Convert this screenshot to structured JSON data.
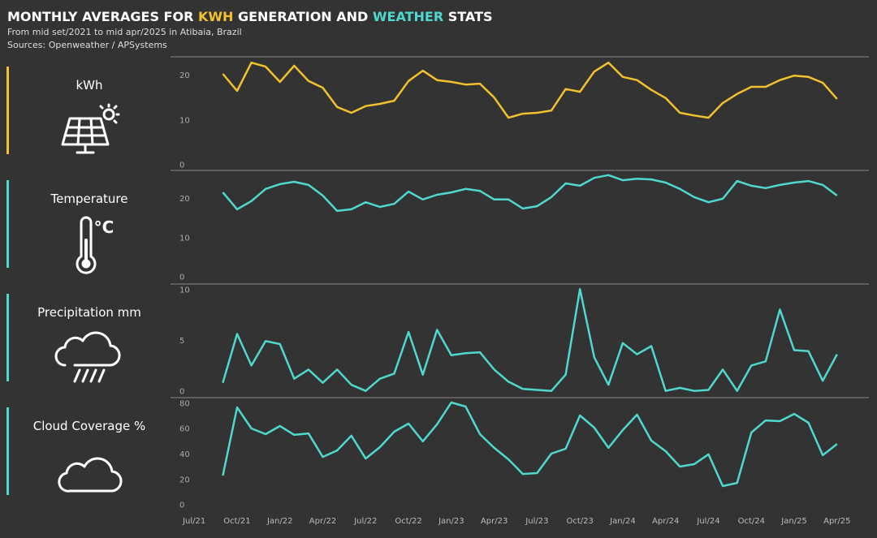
{
  "header": {
    "title": [
      {
        "text": "MONTHLY AVERAGES FOR ",
        "color": "#ffffff"
      },
      {
        "text": "KWH",
        "color": "#f2c12e"
      },
      {
        "text": " GENERATION AND ",
        "color": "#ffffff"
      },
      {
        "text": "WEATHER",
        "color": "#4fd8cf"
      },
      {
        "text": " STATS",
        "color": "#ffffff"
      }
    ],
    "subtitle": "From mid set/2021 to mid apr/2025 in Atibaia, Brazil",
    "source": "Sources: Openweather / APSystems"
  },
  "chart_data": [
    {
      "type": "line",
      "title": "kWh",
      "color": "#f2c12e",
      "x": [
        "2021-09",
        "2021-10",
        "2021-11",
        "2021-12",
        "2022-01",
        "2022-02",
        "2022-03",
        "2022-04",
        "2022-05",
        "2022-06",
        "2022-07",
        "2022-08",
        "2022-09",
        "2022-10",
        "2022-11",
        "2022-12",
        "2023-01",
        "2023-02",
        "2023-03",
        "2023-04",
        "2023-05",
        "2023-06",
        "2023-07",
        "2023-08",
        "2023-09",
        "2023-10",
        "2023-11",
        "2023-12",
        "2024-01",
        "2024-02",
        "2024-03",
        "2024-04",
        "2024-05",
        "2024-06",
        "2024-07",
        "2024-08",
        "2024-09",
        "2024-10",
        "2024-11",
        "2024-12",
        "2025-01",
        "2025-02",
        "2025-03",
        "2025-04"
      ],
      "values": [
        20.2,
        16.4,
        22.7,
        21.8,
        18.4,
        22.0,
        18.6,
        17.1,
        12.8,
        11.5,
        13.0,
        13.5,
        14.2,
        18.6,
        20.9,
        18.8,
        18.4,
        17.8,
        18.0,
        14.9,
        10.4,
        11.3,
        11.5,
        12.0,
        16.8,
        16.2,
        20.7,
        22.7,
        19.5,
        18.8,
        16.6,
        14.8,
        11.5,
        10.9,
        10.4,
        13.7,
        15.7,
        17.3,
        17.3,
        18.8,
        19.8,
        19.5,
        18.2,
        14.6
      ],
      "xlim": [
        "2021-05",
        "2025-06"
      ],
      "ylim": [
        -1,
        24
      ],
      "yticks": [
        0,
        10,
        20
      ]
    },
    {
      "type": "line",
      "title": "Temperature",
      "unit": "°C",
      "color": "#4fd8cf",
      "x": [
        "2021-09",
        "2021-10",
        "2021-11",
        "2021-12",
        "2022-01",
        "2022-02",
        "2022-03",
        "2022-04",
        "2022-05",
        "2022-06",
        "2022-07",
        "2022-08",
        "2022-09",
        "2022-10",
        "2022-11",
        "2022-12",
        "2023-01",
        "2023-02",
        "2023-03",
        "2023-04",
        "2023-05",
        "2023-06",
        "2023-07",
        "2023-08",
        "2023-09",
        "2023-10",
        "2023-11",
        "2023-12",
        "2024-01",
        "2024-02",
        "2024-03",
        "2024-04",
        "2024-05",
        "2024-06",
        "2024-07",
        "2024-08",
        "2024-09",
        "2024-10",
        "2024-11",
        "2024-12",
        "2025-01",
        "2025-02",
        "2025-03",
        "2025-04"
      ],
      "values": [
        21.4,
        17.1,
        19.2,
        22.3,
        23.5,
        24.1,
        23.3,
        20.6,
        16.7,
        17.1,
        18.9,
        17.7,
        18.5,
        21.6,
        19.6,
        20.8,
        21.4,
        22.3,
        21.8,
        19.6,
        19.6,
        17.3,
        17.9,
        20.2,
        23.7,
        23.1,
        25.1,
        25.8,
        24.5,
        24.9,
        24.7,
        23.9,
        22.3,
        20.2,
        18.9,
        19.8,
        24.3,
        23.1,
        22.5,
        23.3,
        23.9,
        24.3,
        23.3,
        20.6
      ],
      "xlim": [
        "2021-05",
        "2025-06"
      ],
      "ylim": [
        -1.5,
        27
      ],
      "yticks": [
        0,
        10,
        20
      ]
    },
    {
      "type": "line",
      "title": "Precipitation mm",
      "color": "#4fd8cf",
      "x": [
        "2021-09",
        "2021-10",
        "2021-11",
        "2021-12",
        "2022-01",
        "2022-02",
        "2022-03",
        "2022-04",
        "2022-05",
        "2022-06",
        "2022-07",
        "2022-08",
        "2022-09",
        "2022-10",
        "2022-11",
        "2022-12",
        "2023-01",
        "2023-02",
        "2023-03",
        "2023-04",
        "2023-05",
        "2023-06",
        "2023-07",
        "2023-08",
        "2023-09",
        "2023-10",
        "2023-11",
        "2023-12",
        "2024-01",
        "2024-02",
        "2024-03",
        "2024-04",
        "2024-05",
        "2024-06",
        "2024-07",
        "2024-08",
        "2024-09",
        "2024-10",
        "2024-11",
        "2024-12",
        "2025-01",
        "2025-02",
        "2025-03",
        "2025-04"
      ],
      "values": [
        0.8,
        5.6,
        2.5,
        4.9,
        4.6,
        1.2,
        2.1,
        0.8,
        2.1,
        0.6,
        0,
        1.2,
        1.7,
        5.8,
        1.6,
        6.0,
        3.5,
        3.7,
        3.8,
        2.1,
        0.9,
        0.2,
        0.1,
        0.0,
        1.6,
        10.0,
        3.3,
        0.6,
        4.7,
        3.6,
        4.4,
        0.0,
        0.3,
        0,
        0.1,
        2.1,
        0,
        2.5,
        2.9,
        8.0,
        4.0,
        3.9,
        1.0,
        3.6
      ],
      "xlim": [
        "2021-05",
        "2025-06"
      ],
      "ylim": [
        -0.5,
        10.5
      ],
      "yticks": [
        0,
        5,
        10
      ]
    },
    {
      "type": "line",
      "title": "Cloud Coverage %",
      "color": "#4fd8cf",
      "x": [
        "2021-09",
        "2021-10",
        "2021-11",
        "2021-12",
        "2022-01",
        "2022-02",
        "2022-03",
        "2022-04",
        "2022-05",
        "2022-06",
        "2022-07",
        "2022-08",
        "2022-09",
        "2022-10",
        "2022-11",
        "2022-12",
        "2023-01",
        "2023-02",
        "2023-03",
        "2023-04",
        "2023-05",
        "2023-06",
        "2023-07",
        "2023-08",
        "2023-09",
        "2023-10",
        "2023-11",
        "2023-12",
        "2024-01",
        "2024-02",
        "2024-03",
        "2024-04",
        "2024-05",
        "2024-06",
        "2024-07",
        "2024-08",
        "2024-09",
        "2024-10",
        "2024-11",
        "2024-12",
        "2025-01",
        "2025-02",
        "2025-03",
        "2025-04"
      ],
      "values": [
        22.7,
        76.3,
        59.8,
        55.3,
        61.7,
        54.7,
        55.9,
        37.4,
        42.5,
        54.0,
        36.1,
        45.1,
        57.2,
        63.6,
        49.6,
        63.0,
        80.2,
        77.0,
        55.3,
        44.5,
        35.5,
        24.0,
        24.7,
        40.0,
        43.8,
        70.0,
        60.4,
        44.5,
        58.5,
        70.6,
        50.2,
        41.9,
        29.8,
        31.7,
        39.4,
        14.5,
        17.0,
        56.6,
        66.1,
        65.5,
        71.2,
        64.2,
        38.7,
        47.6
      ],
      "xlim": [
        "2021-05",
        "2025-06"
      ],
      "ylim": [
        -4,
        84
      ],
      "yticks": [
        0,
        20,
        40,
        60,
        80
      ],
      "xticks": [
        {
          "value": "2021-07",
          "label": "Jul/21"
        },
        {
          "value": "2021-10",
          "label": "Oct/21"
        },
        {
          "value": "2022-01",
          "label": "Jan/22"
        },
        {
          "value": "2022-04",
          "label": "Apr/22"
        },
        {
          "value": "2022-07",
          "label": "Jul/22"
        },
        {
          "value": "2022-10",
          "label": "Oct/22"
        },
        {
          "value": "2023-01",
          "label": "Jan/23"
        },
        {
          "value": "2023-04",
          "label": "Apr/23"
        },
        {
          "value": "2023-07",
          "label": "Jul/23"
        },
        {
          "value": "2023-10",
          "label": "Oct/23"
        },
        {
          "value": "2024-01",
          "label": "Jan/24"
        },
        {
          "value": "2024-04",
          "label": "Apr/24"
        },
        {
          "value": "2024-07",
          "label": "Jul/24"
        },
        {
          "value": "2024-10",
          "label": "Oct/24"
        },
        {
          "value": "2025-01",
          "label": "Jan/25"
        },
        {
          "value": "2025-04",
          "label": "Apr/25"
        }
      ]
    }
  ]
}
